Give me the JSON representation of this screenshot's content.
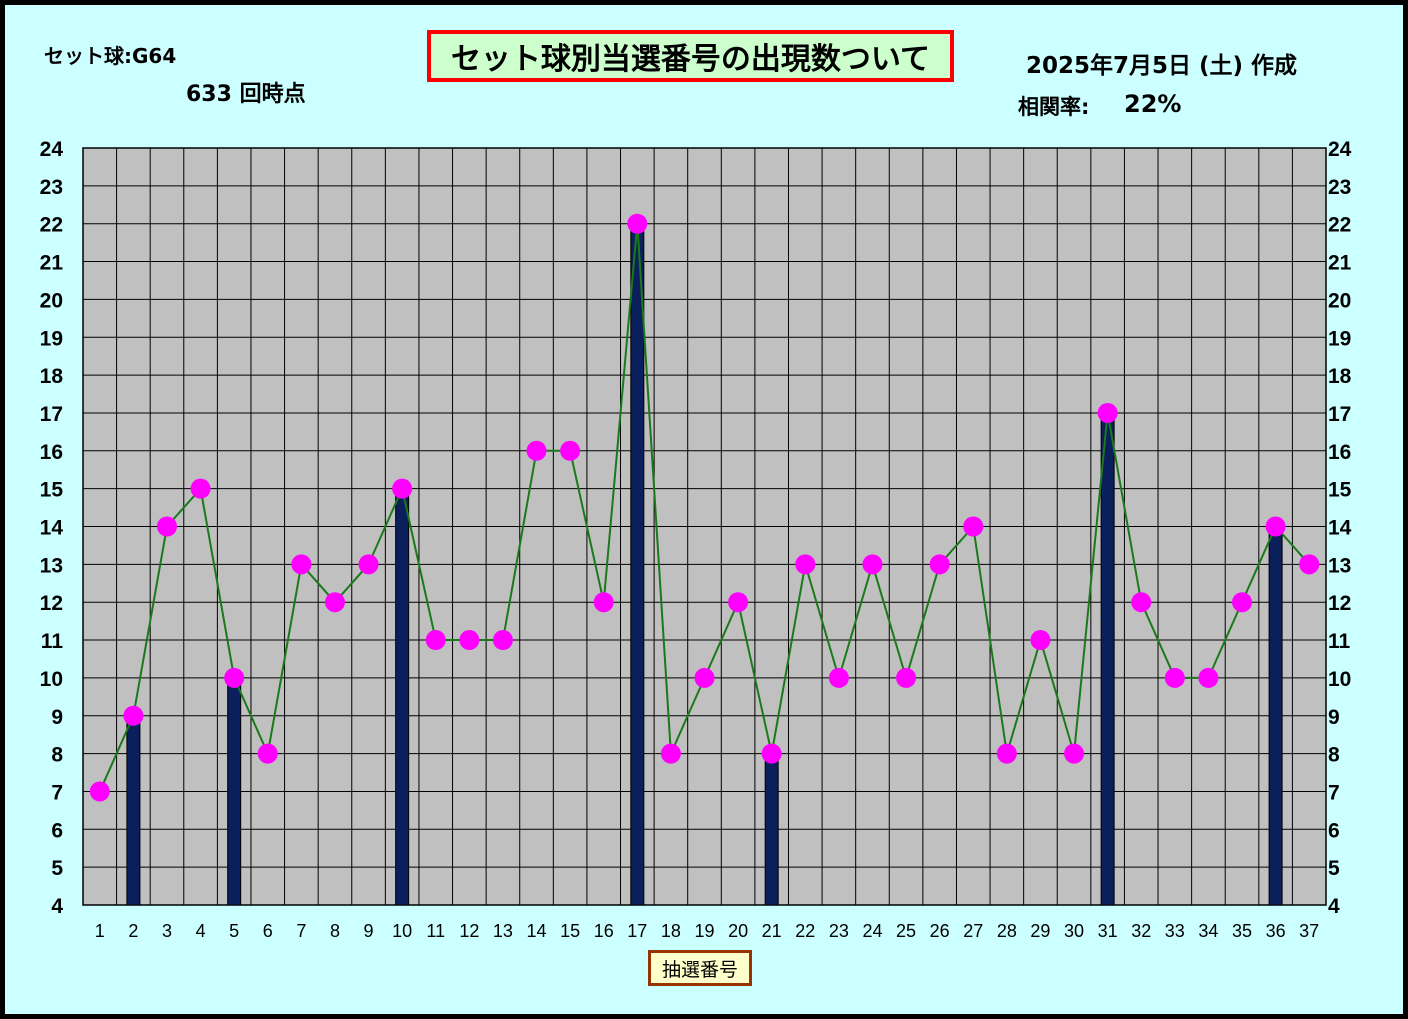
{
  "header": {
    "set_ball": "セット球:G64",
    "draw_point": "633 回時点",
    "title": "セット球別当選番号の出現数ついて",
    "created": "2025年7月5日 (土) 作成",
    "correlation_label": "相関率:",
    "correlation_value": "22%"
  },
  "colors": {
    "background": "#ccffff",
    "plot_area": "#c0c0c0",
    "bar": "#0a1f5c",
    "line": "#1a7a1a",
    "marker": "#ff00ff",
    "title_border": "#ff0000",
    "title_fill": "#ccffcc"
  },
  "chart_data": {
    "type": "bar",
    "title": "セット球別当選番号の出現数ついて",
    "xlabel": "抽選番号",
    "ylabel": "",
    "ylim": [
      4,
      24
    ],
    "y2lim": [
      4,
      24
    ],
    "yticks": [
      4,
      5,
      6,
      7,
      8,
      9,
      10,
      11,
      12,
      13,
      14,
      15,
      16,
      17,
      18,
      19,
      20,
      21,
      22,
      23,
      24
    ],
    "grid": true,
    "categories": [
      "1",
      "2",
      "3",
      "4",
      "5",
      "6",
      "7",
      "8",
      "9",
      "10",
      "11",
      "12",
      "13",
      "14",
      "15",
      "16",
      "17",
      "18",
      "19",
      "20",
      "21",
      "22",
      "23",
      "24",
      "25",
      "26",
      "27",
      "28",
      "29",
      "30",
      "31",
      "32",
      "33",
      "34",
      "35",
      "36",
      "37"
    ],
    "series": [
      {
        "type": "bar",
        "values": [
          null,
          9,
          null,
          null,
          10,
          null,
          null,
          null,
          null,
          15,
          null,
          null,
          null,
          null,
          null,
          null,
          22,
          null,
          null,
          null,
          8,
          null,
          null,
          null,
          null,
          null,
          null,
          null,
          null,
          null,
          17,
          null,
          null,
          null,
          null,
          14,
          null
        ]
      },
      {
        "type": "line",
        "values": [
          7,
          9,
          14,
          15,
          10,
          8,
          13,
          12,
          13,
          15,
          11,
          11,
          11,
          16,
          16,
          12,
          22,
          8,
          10,
          12,
          8,
          13,
          10,
          13,
          10,
          13,
          14,
          8,
          11,
          8,
          17,
          12,
          10,
          10,
          12,
          14,
          13
        ]
      }
    ]
  }
}
